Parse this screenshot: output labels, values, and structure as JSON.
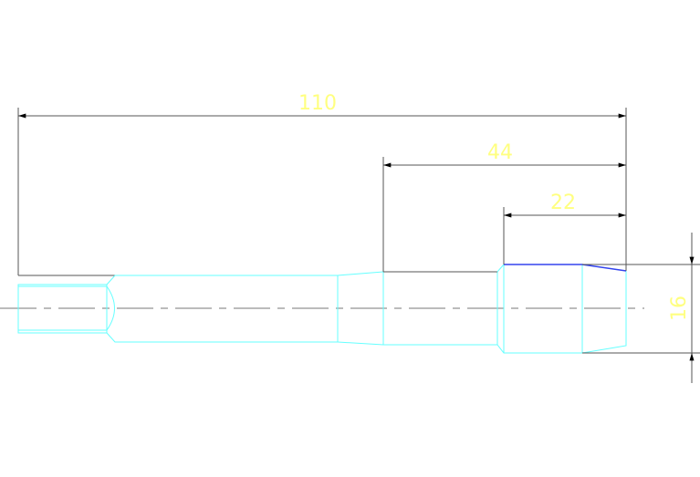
{
  "dimensions": {
    "overall_length": "110",
    "length_44": "44",
    "length_22": "22",
    "diameter": "16"
  },
  "colors": {
    "dimension_text": "#ffff80",
    "outline": "#66ffff",
    "highlight_edge": "#3344ee",
    "dimension_lines": "#555555"
  }
}
